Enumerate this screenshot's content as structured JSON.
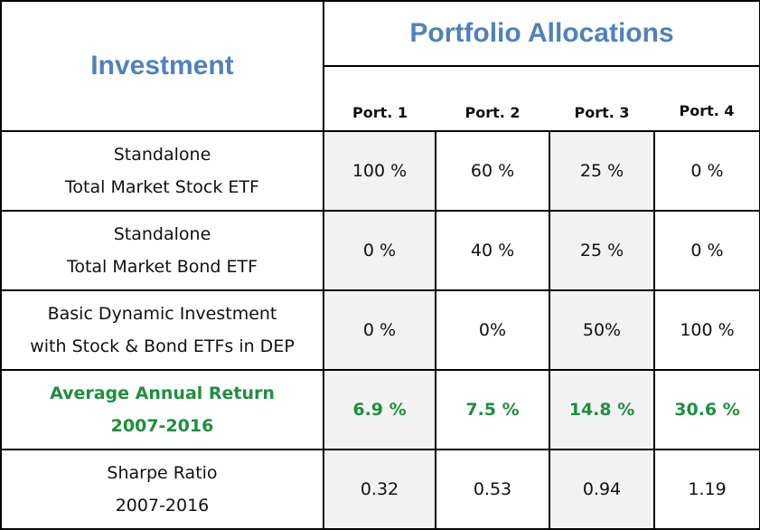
{
  "header": {
    "investment_title": "Investment",
    "allocations_title": "Portfolio Allocations",
    "ports": [
      "Port. 1",
      "Port. 2",
      "Port. 3",
      "Port. 4"
    ]
  },
  "rows": [
    {
      "label_line1": "Standalone",
      "label_line2": "Total Market Stock ETF",
      "values": [
        "100 %",
        "60 %",
        "25 %",
        "0 %"
      ]
    },
    {
      "label_line1": "Standalone",
      "label_line2": "Total Market Bond ETF",
      "values": [
        "0 %",
        "40 %",
        "25 %",
        "0 %"
      ]
    },
    {
      "label_line1": "Basic Dynamic Investment",
      "label_line2": "with Stock & Bond ETFs in DEP",
      "values": [
        "0 %",
        "0%",
        "50%",
        "100 %"
      ]
    },
    {
      "label_line1": "Average Annual Return",
      "label_line2": "2007-2016",
      "values": [
        "6.9 %",
        "7.5 %",
        "14.8 %",
        "30.6 %"
      ]
    },
    {
      "label_line1": "Sharpe Ratio",
      "label_line2": "2007-2016",
      "values": [
        "0.32",
        "0.53",
        "0.94",
        "1.19"
      ]
    }
  ],
  "colors": {
    "header_blue": "#4f81bd",
    "return_green": "#1e8f3e",
    "shade_gray": "#f2f2f2"
  }
}
